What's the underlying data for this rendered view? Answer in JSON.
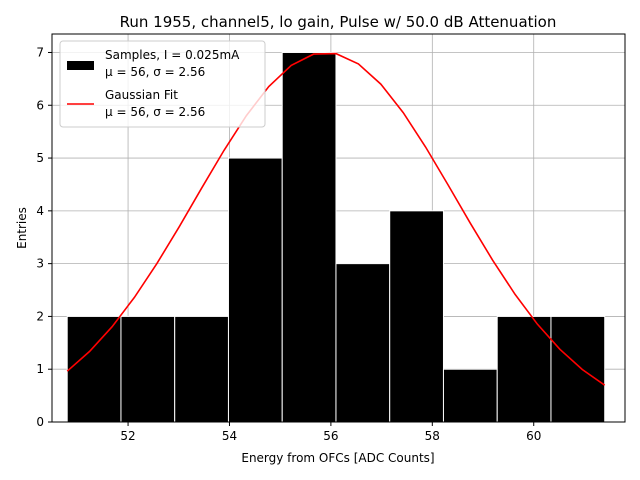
{
  "chart_data": {
    "type": "bar",
    "title": "Run 1955, channel5, lo gain, Pulse w/ 50.0 dB Attenuation",
    "xlabel": "Energy from OFCs [ADC Counts]",
    "ylabel": "Entries",
    "xlim": [
      50.5,
      61.8
    ],
    "ylim": [
      0,
      7.35
    ],
    "xticks": [
      "52",
      "54",
      "56",
      "58",
      "60"
    ],
    "xtick_values": [
      52,
      54,
      56,
      58,
      60
    ],
    "yticks": [
      "0",
      "1",
      "2",
      "3",
      "4",
      "5",
      "6",
      "7"
    ],
    "ytick_values": [
      0,
      1,
      2,
      3,
      4,
      5,
      6,
      7
    ],
    "grid": true,
    "legend_position": "top-left",
    "histogram": {
      "name": "Samples",
      "bin_edges": [
        50.8,
        51.86,
        52.92,
        53.98,
        55.04,
        56.1,
        57.16,
        58.22,
        59.28,
        60.34,
        61.4
      ],
      "counts": [
        2,
        2,
        2,
        5,
        7,
        3,
        4,
        1,
        2,
        2
      ],
      "color": "#000000",
      "edge_color": "#ffffff"
    },
    "fit": {
      "name": "Gaussian Fit",
      "type": "line",
      "mu": 55.9,
      "sigma": 2.56,
      "amplitude": 7.0,
      "x_range": [
        50.8,
        61.4
      ],
      "color": "#ff0000"
    },
    "legend": [
      {
        "line1": "Samples, I = 0.025mA",
        "line2": "μ = 56, σ = 2.56",
        "kind": "patch",
        "color": "#000000"
      },
      {
        "line1": "Gaussian Fit",
        "line2": "μ = 56, σ = 2.56",
        "kind": "line",
        "color": "#ff0000"
      }
    ]
  }
}
